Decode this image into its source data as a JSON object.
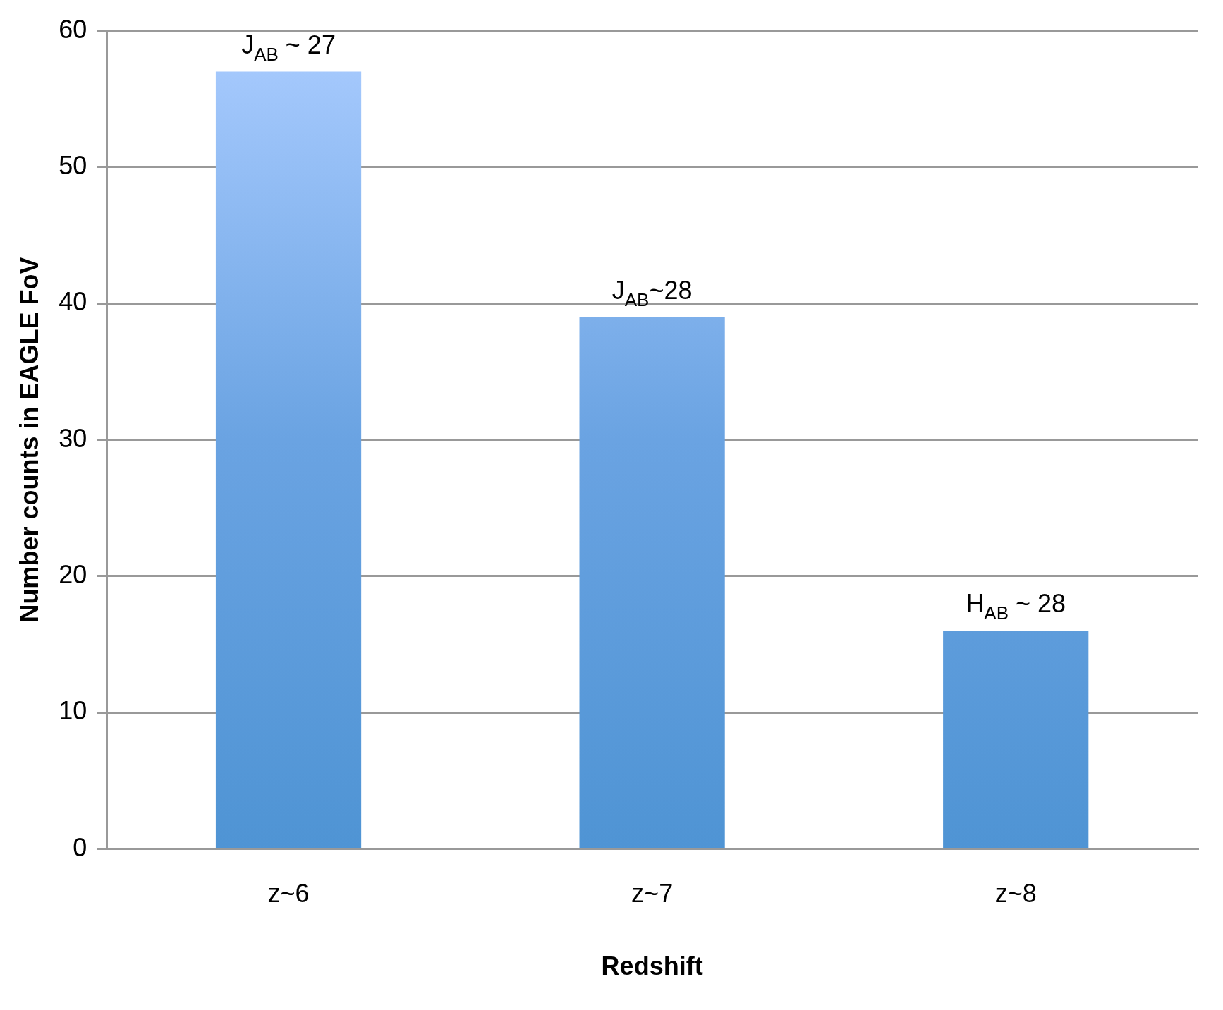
{
  "chart_data": {
    "type": "bar",
    "xlabel": "Redshift",
    "ylabel": "Number counts in EAGLE FoV",
    "categories": [
      "z~6",
      "z~7",
      "z~8"
    ],
    "values": [
      57,
      39,
      16
    ],
    "color": "#6aa3e2",
    "ylim": [
      0,
      60
    ],
    "yticks": [
      0,
      10,
      20,
      30,
      40,
      50,
      60
    ],
    "grid": "y",
    "annotations": [
      {
        "text": "J$_{AB}$ ~ 27",
        "x": "z~6",
        "y": 57
      },
      {
        "text": "J$_{AB}$~28",
        "x": "z~7",
        "y": 39
      },
      {
        "text": "H$_{AB}$ ~ 28",
        "x": "z~8",
        "y": 16
      }
    ]
  }
}
